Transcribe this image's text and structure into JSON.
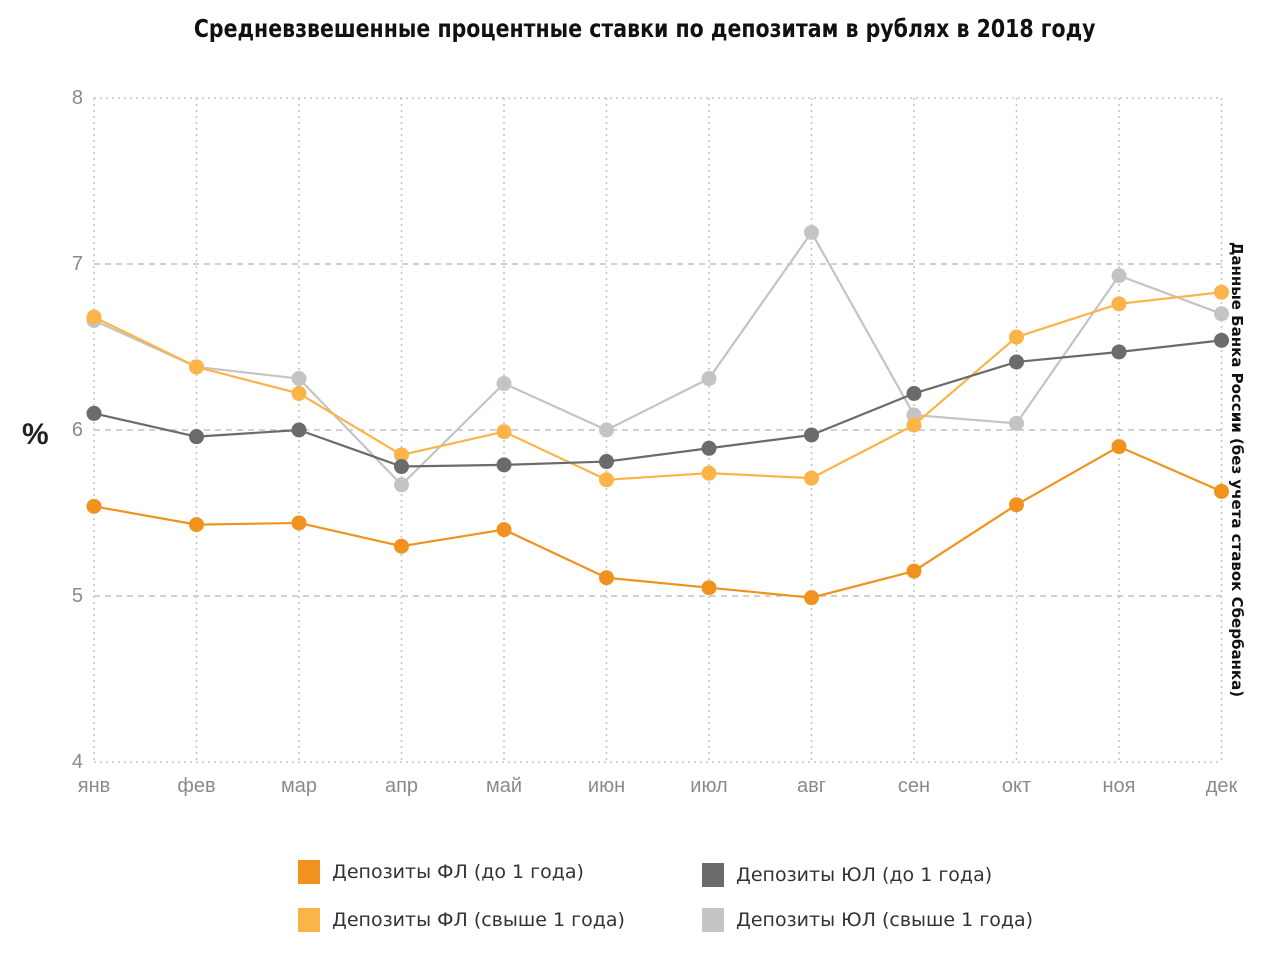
{
  "chart_data": {
    "type": "line",
    "title": "Средневзвешенные процентные ставки по депозитам в рублях в 2018 году",
    "ylabel": "%",
    "side_note": "Данные Банка России (без учета ставок Сбербанка)",
    "categories": [
      "янв",
      "фев",
      "мар",
      "апр",
      "май",
      "июн",
      "июл",
      "авг",
      "сен",
      "окт",
      "ноя",
      "дек"
    ],
    "ylim": [
      4,
      8
    ],
    "yticks": [
      "4",
      "5",
      "6",
      "7",
      "8"
    ],
    "grid": true,
    "legend_position": "bottom",
    "series": [
      {
        "name": "Депозиты ЮЛ (свыше 1 года)",
        "color": "#c4c4c4",
        "values": [
          6.66,
          6.38,
          6.31,
          5.67,
          6.28,
          6.0,
          6.31,
          7.19,
          6.09,
          6.04,
          6.93,
          6.7
        ]
      },
      {
        "name": "Депозиты ФЛ (свыше 1 года)",
        "color": "#fbb448",
        "values": [
          6.68,
          6.38,
          6.22,
          5.85,
          5.99,
          5.7,
          5.74,
          5.71,
          6.03,
          6.56,
          6.76,
          6.83
        ]
      },
      {
        "name": "Депозиты ЮЛ (до 1 года)",
        "color": "#6b6b6b",
        "values": [
          6.1,
          5.96,
          6.0,
          5.78,
          5.79,
          5.81,
          5.89,
          5.97,
          6.22,
          6.41,
          6.47,
          6.54
        ]
      },
      {
        "name": "Депозиты ФЛ (до 1 года)",
        "color": "#f0921d",
        "values": [
          5.54,
          5.43,
          5.44,
          5.3,
          5.4,
          5.11,
          5.05,
          4.99,
          5.15,
          5.55,
          5.9,
          5.63
        ]
      }
    ],
    "legend": [
      {
        "name": "Депозиты ФЛ (до 1 года)",
        "color": "#f0921d"
      },
      {
        "name": "Депозиты ЮЛ (до 1 года)",
        "color": "#6b6b6b"
      },
      {
        "name": "Депозиты ФЛ (свыше 1 года)",
        "color": "#fbb448"
      },
      {
        "name": "Депозиты ЮЛ (свыше 1 года)",
        "color": "#c4c4c4"
      }
    ]
  }
}
